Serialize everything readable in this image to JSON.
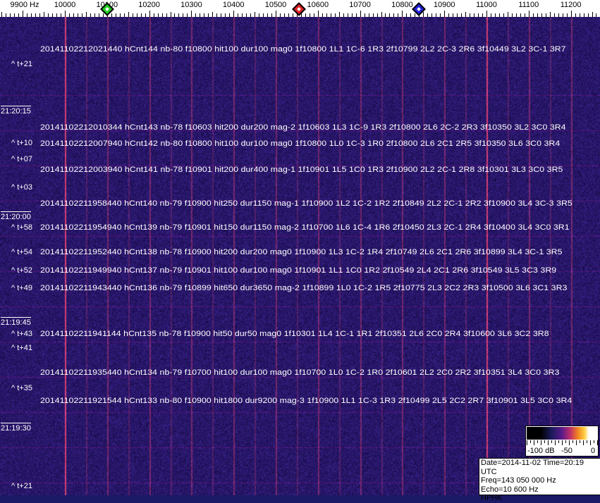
{
  "frequency_axis": {
    "unit_label": "9900 Hz",
    "labels": [
      "10000",
      "10100",
      "10200",
      "10300",
      "10400",
      "10500",
      "10600",
      "10700",
      "10800",
      "10900",
      "11000",
      "11100",
      "11200"
    ]
  },
  "markers": [
    {
      "name": "green-marker",
      "freq_hz": 10100,
      "color": "#22cc22"
    },
    {
      "name": "red-marker",
      "freq_hz": 10555,
      "color": "#dd2222"
    },
    {
      "name": "blue-marker",
      "freq_hz": 10840,
      "color": "#2222dd"
    }
  ],
  "time_labels": [
    "21:20:15",
    "21:20:00",
    "21:19:45",
    "21:19:30"
  ],
  "detections": [
    "20141102212021440 hCnt144 nb-80 f10800 hit100 dur100 mag0 1f10800 1L1 1C-6 1R3 2f10799 2L2 2C-3 2R6 3f10449 3L2 3C-1 3R7",
    "20141102212010344 hCnt143 nb-78 f10603 hit200 dur200 mag-2 1f10603 1L3 1C-9 1R3 2f10800 2L6 2C-2 2R3 3f10350 3L2 3C0 3R4",
    "20141102212007940 hCnt142 nb-80 f10800 hit100 dur100 mag0 1f10800 1L0 1C-3 1R0 2f10800 2L6 2C1 2R5 3f10350 3L6 3C0 3R4",
    "20141102212003940 hCnt141 nb-78 f10901 hit200 dur400 mag-1 1f10901 1L5 1C0 1R3 2f10900 2L2 2C-1 2R8 3f10301 3L3 3C0 3R5",
    "20141102211958440 hCnt140 nb-79 f10900 hit250 dur1150 mag-1 1f10900 1L2 1C-2 1R2 2f10849 2L2 2C-1 2R2 3f10900 3L4 3C-3 3R5",
    "20141102211954940 hCnt139 nb-79 f10901 hit150 dur1150 mag-2 1f10700 1L6 1C-4 1R6 2f10450 2L3 2C-1 2R4 3f10400 3L4 3C0 3R1",
    "20141102211952440 hCnt138 nb-78 f10900 hit200 dur200 mag0 1f10900 1L3 1C-2 1R4 2f10749 2L6 2C1 2R6 3f10899 3L4 3C-1 3R5",
    "20141102211949940 hCnt137 nb-79 f10901 hit100 dur100 mag0 1f10901 1L1 1C0 1R2 2f10549 2L4 2C1 2R6 3f10549 3L5 3C3 3R9",
    "20141102211943440 hCnt136 nb-79 f10899 hit650 dur3650 mag-2 1f10899 1L0 1C-2 1R5 2f10775 2L3 2C2 2R3 3f10500 3L6 3C1 3R3",
    "20141102211941144 hCnt135 nb-78 f10900 hit50 dur50 mag0 1f10301 1L4 1C-1 1R1 2f10351 2L6 2C0 2R4 3f10600 3L6 3C2 3R8",
    "20141102211935440 hCnt134 nb-79 f10700 hit100 dur100 mag0 1f10700 1L0 1C-2 1R0 2f10601 2L2 2C0 2R2 3f10351 3L4 3C0 3R3",
    "20141102211921544 hCnt133 nb-80 f10900 hit1800 dur9200 mag-3 1f10900 1L1 1C-3 1R3 2f10499 2L5 2C2 2R7 3f10901 3L5 3C0 3R4"
  ],
  "offset_labels": [
    "^ t+21",
    "^ t+10",
    "^ t+07",
    "^ t+03",
    "^ t+58",
    "^ t+54",
    "^ t+52",
    "^ t+49",
    "^ t+43",
    "^ t+41",
    "^ t+35",
    "^ t+21"
  ],
  "colorbar": {
    "labels": [
      "-100 dB",
      "-50",
      "0"
    ],
    "range_db": [
      -100,
      0
    ]
  },
  "info": {
    "date_time": "Date=2014-11-02 Time=20:19 UTC",
    "freq": "Freq=143 050 000 Hz",
    "echo": "Echo=10 600 Hz",
    "station": "HPHK"
  }
}
